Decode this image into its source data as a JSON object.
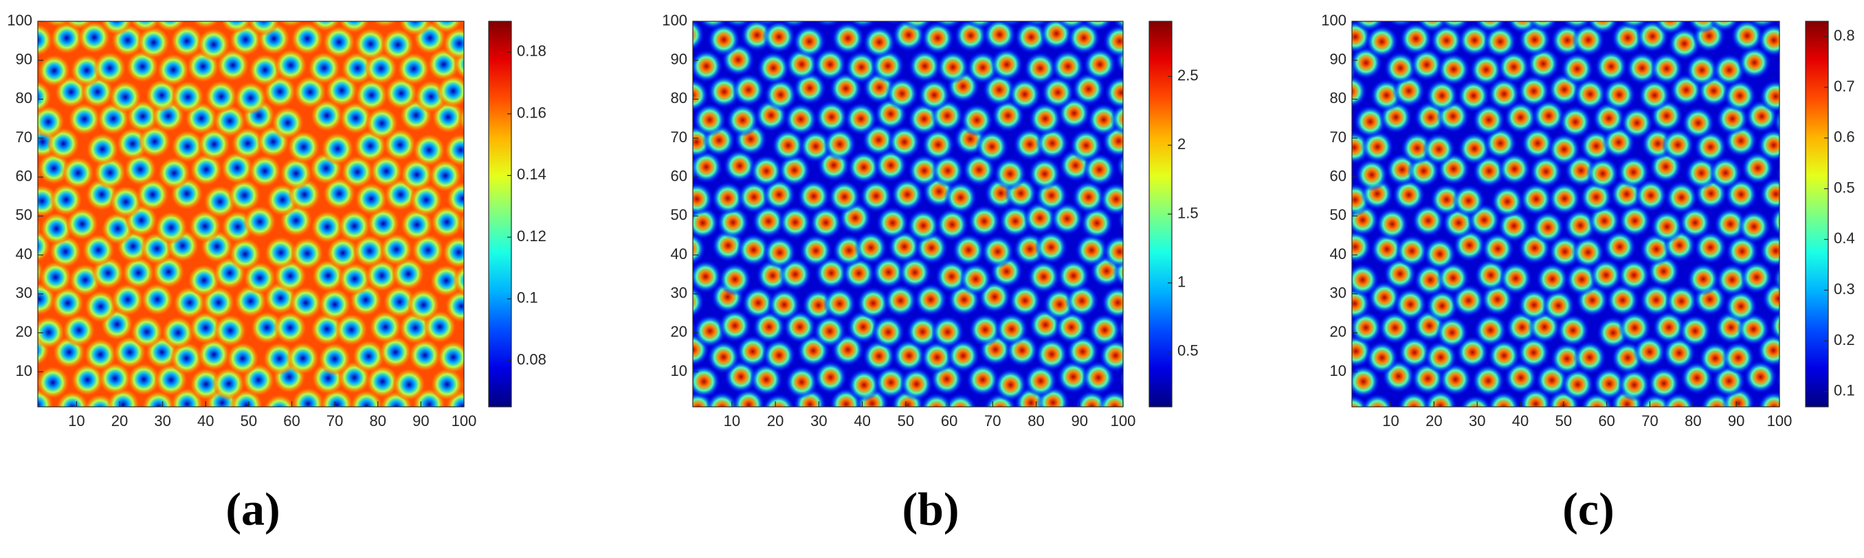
{
  "chart_data": [
    {
      "type": "heatmap",
      "caption": "(a)",
      "colormap": "jet",
      "xlim": [
        1,
        100
      ],
      "ylim": [
        1,
        100
      ],
      "xticks": [
        10,
        20,
        30,
        40,
        50,
        60,
        70,
        80,
        90,
        100
      ],
      "yticks": [
        10,
        20,
        30,
        40,
        50,
        60,
        70,
        80,
        90,
        100
      ],
      "clim": [
        0.065,
        0.19
      ],
      "cticks": [
        0.08,
        0.1,
        0.12,
        0.14,
        0.16,
        0.18
      ]
    },
    {
      "type": "heatmap",
      "caption": "(b)",
      "colormap": "jet",
      "xlim": [
        1,
        100
      ],
      "ylim": [
        1,
        100
      ],
      "xticks": [
        10,
        20,
        30,
        40,
        50,
        60,
        70,
        80,
        90,
        100
      ],
      "yticks": [
        10,
        20,
        30,
        40,
        50,
        60,
        70,
        80,
        90,
        100
      ],
      "clim": [
        0.1,
        2.9
      ],
      "cticks": [
        0.5,
        1,
        1.5,
        2,
        2.5
      ]
    },
    {
      "type": "heatmap",
      "caption": "(c)",
      "colormap": "jet",
      "xlim": [
        1,
        100
      ],
      "ylim": [
        1,
        100
      ],
      "xticks": [
        10,
        20,
        30,
        40,
        50,
        60,
        70,
        80,
        90,
        100
      ],
      "yticks": [
        10,
        20,
        30,
        40,
        50,
        60,
        70,
        80,
        90,
        100
      ],
      "clim": [
        0.07,
        0.83
      ],
      "cticks": [
        0.1,
        0.2,
        0.3,
        0.4,
        0.5,
        0.6,
        0.7,
        0.8
      ]
    }
  ]
}
